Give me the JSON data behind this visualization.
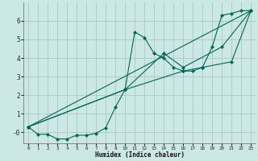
{
  "xlabel": "Humidex (Indice chaleur)",
  "background_color": "#cce8e4",
  "grid_color": "#aac8c4",
  "line_color": "#006655",
  "xlim": [
    -0.5,
    23.5
  ],
  "ylim": [
    -0.6,
    7.0
  ],
  "yticks": [
    0,
    1,
    2,
    3,
    4,
    5,
    6
  ],
  "ytick_labels": [
    "-0",
    "1",
    "2",
    "3",
    "4",
    "5",
    "6"
  ],
  "xtick_labels": [
    "0",
    "1",
    "2",
    "3",
    "4",
    "5",
    "6",
    "7",
    "8",
    "9",
    "10",
    "11",
    "12",
    "13",
    "14",
    "15",
    "16",
    "17",
    "18",
    "19",
    "20",
    "21",
    "22",
    "23"
  ],
  "line1_x": [
    0,
    1,
    2,
    3,
    4,
    5,
    6,
    7,
    8,
    9,
    10,
    11,
    12,
    13,
    14,
    15,
    16,
    17,
    18,
    19,
    20,
    21,
    22,
    23
  ],
  "line1_y": [
    0.3,
    -0.1,
    -0.1,
    -0.35,
    -0.35,
    -0.15,
    -0.15,
    -0.05,
    0.25,
    1.35,
    2.3,
    5.4,
    5.1,
    4.25,
    4.0,
    3.5,
    3.3,
    3.3,
    3.5,
    4.6,
    6.3,
    6.4,
    6.55,
    6.55
  ],
  "line2_x": [
    0,
    23
  ],
  "line2_y": [
    0.3,
    6.55
  ],
  "line3_x": [
    0,
    10,
    14,
    16,
    20,
    23
  ],
  "line3_y": [
    0.3,
    2.3,
    4.25,
    3.5,
    4.6,
    6.55
  ],
  "line4_x": [
    0,
    10,
    16,
    18,
    21,
    23
  ],
  "line4_y": [
    0.3,
    2.3,
    3.3,
    3.5,
    3.8,
    6.55
  ]
}
